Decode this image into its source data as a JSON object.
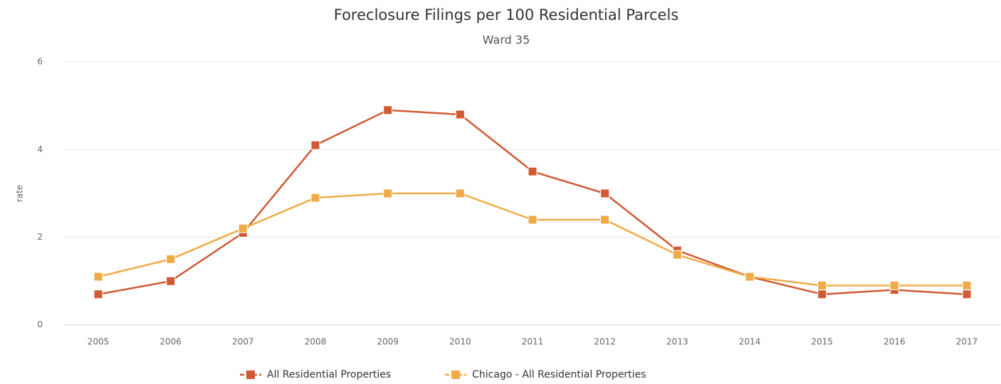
{
  "chart_data": {
    "type": "line",
    "title": "Foreclosure Filings per 100 Residential Parcels",
    "subtitle": "Ward 35",
    "y_label": "rate",
    "categories": [
      "2005",
      "2006",
      "2007",
      "2008",
      "2009",
      "2010",
      "2011",
      "2012",
      "2013",
      "2014",
      "2015",
      "2016",
      "2017"
    ],
    "series": [
      {
        "name": "All Residential Properties",
        "color": "#d05a34",
        "values": [
          0.7,
          1.0,
          2.1,
          4.1,
          4.9,
          4.8,
          3.5,
          3.0,
          1.7,
          1.1,
          0.7,
          0.8,
          0.7
        ]
      },
      {
        "name": "Chicago - All Residential Properties",
        "color": "#f0ab48",
        "values": [
          1.1,
          1.5,
          2.2,
          2.9,
          3.0,
          3.0,
          2.4,
          2.4,
          1.6,
          1.1,
          0.9,
          0.9,
          0.9
        ]
      }
    ],
    "ylim": [
      0,
      6
    ],
    "yticks": [
      0,
      2,
      4,
      6
    ],
    "grid": true,
    "legend": "bottom"
  }
}
